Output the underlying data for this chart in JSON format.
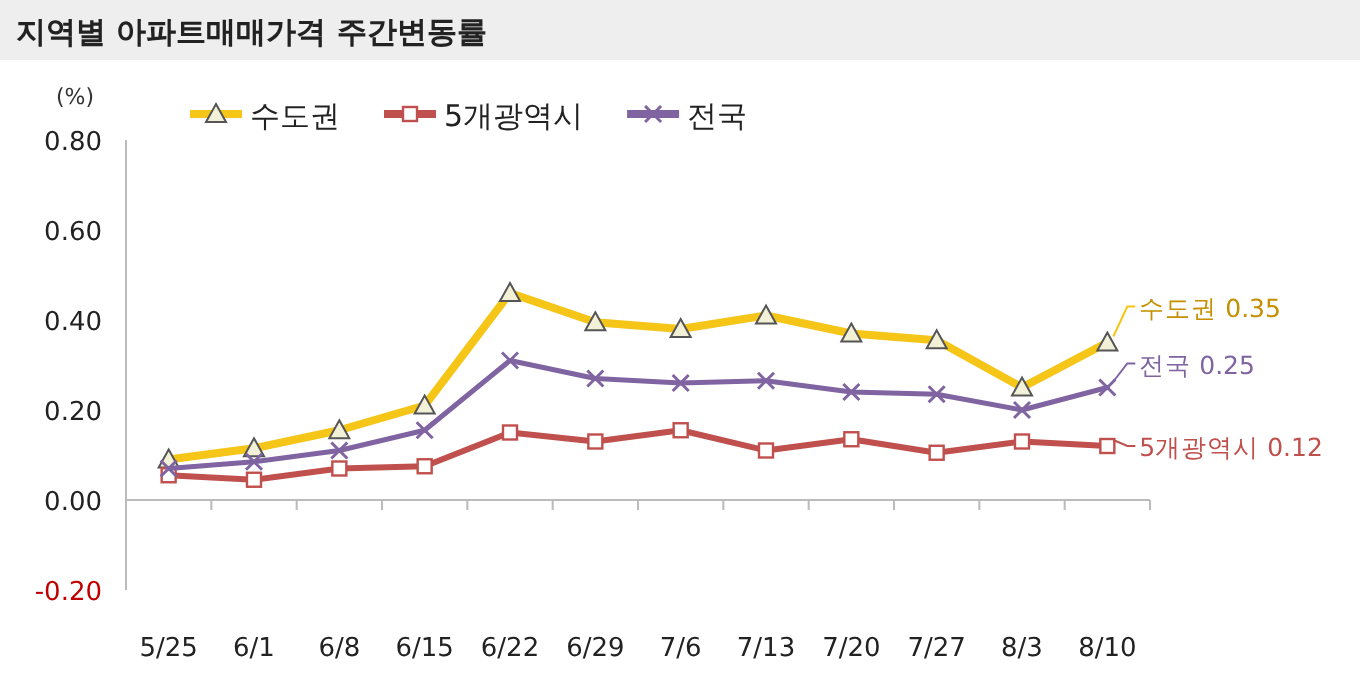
{
  "chart_data": {
    "type": "line",
    "title": "지역별 아파트매매가격 주간변동률",
    "ylabel": "(%)",
    "categories": [
      "5/25",
      "6/1",
      "6/8",
      "6/15",
      "6/22",
      "6/29",
      "7/6",
      "7/13",
      "7/20",
      "7/27",
      "8/3",
      "8/10"
    ],
    "series": [
      {
        "name": "수도권",
        "color": "#f5c518",
        "marker": "triangle",
        "values": [
          0.09,
          0.115,
          0.155,
          0.21,
          0.46,
          0.395,
          0.38,
          0.41,
          0.37,
          0.355,
          0.25,
          0.35
        ]
      },
      {
        "name": "5개광역시",
        "color": "#c0504d",
        "marker": "square",
        "values": [
          0.055,
          0.045,
          0.07,
          0.075,
          0.15,
          0.13,
          0.155,
          0.11,
          0.135,
          0.105,
          0.13,
          0.12
        ]
      },
      {
        "name": "전국",
        "color": "#8064a2",
        "marker": "cross",
        "values": [
          0.07,
          0.085,
          0.11,
          0.155,
          0.31,
          0.27,
          0.26,
          0.265,
          0.24,
          0.235,
          0.2,
          0.25
        ]
      }
    ],
    "annotations": [
      {
        "text": "수도권 0.35",
        "x": "8/10",
        "y": 0.35
      },
      {
        "text": "5개광역시 0.12",
        "x": "8/10",
        "y": 0.12
      },
      {
        "text": "전국 0.25",
        "x": "8/10",
        "y": 0.25
      }
    ],
    "ylim": [
      -0.2,
      0.8
    ],
    "yticks": [
      {
        "value": -0.2,
        "label": "-0.20"
      },
      {
        "value": 0,
        "label": "0.00"
      },
      {
        "value": 0.2,
        "label": "0.20"
      },
      {
        "value": 0.4,
        "label": "0.40"
      },
      {
        "value": 0.6,
        "label": "0.60"
      },
      {
        "value": 0.8,
        "label": "0.80"
      }
    ],
    "grid": false,
    "ref_lines": [
      {
        "axis": "y",
        "value": 0,
        "color": "#bbbbbb",
        "line_style": "solid"
      }
    ],
    "legend": "top",
    "line_style": "solid"
  }
}
